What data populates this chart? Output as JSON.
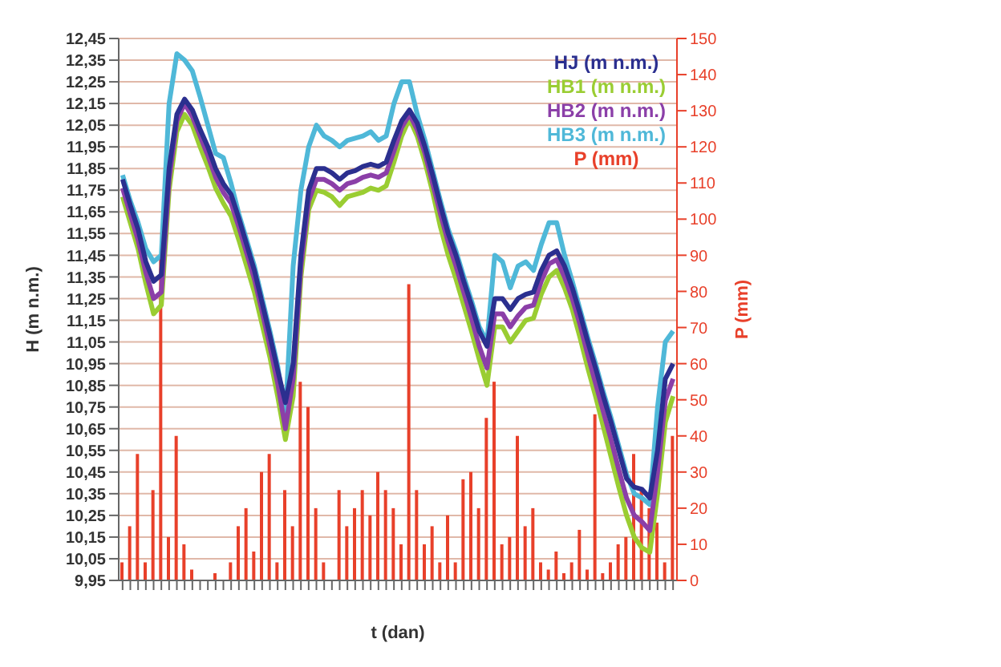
{
  "chart_data": {
    "type": "line",
    "xlabel": "t (dan)",
    "ylabel": "H (m n.m.)",
    "y2label": "P (mm)",
    "categories": [
      null,
      null,
      null,
      null,
      null,
      null,
      null,
      null,
      null,
      null,
      null,
      null,
      null,
      null,
      null,
      null,
      null,
      null,
      null,
      null,
      null,
      null,
      null,
      null,
      null,
      null,
      null,
      null,
      null,
      null,
      null,
      null,
      null,
      null,
      null,
      null,
      null,
      null,
      null,
      null,
      null,
      null,
      null,
      null,
      null,
      null,
      null,
      null,
      null,
      null,
      null,
      null,
      null,
      null,
      null,
      null,
      null,
      null,
      null,
      null,
      null,
      null,
      null,
      null,
      null,
      null,
      null,
      null,
      null,
      null,
      null,
      null
    ],
    "ylim": [
      9.95,
      12.45
    ],
    "yticks": [
      {
        "value": 9.95,
        "label": "9,95"
      },
      {
        "value": 10.05,
        "label": "10,05"
      },
      {
        "value": 10.15,
        "label": "10,15"
      },
      {
        "value": 10.25,
        "label": "10,25"
      },
      {
        "value": 10.35,
        "label": "10,35"
      },
      {
        "value": 10.45,
        "label": "10,45"
      },
      {
        "value": 10.55,
        "label": "10,55"
      },
      {
        "value": 10.65,
        "label": "10,65"
      },
      {
        "value": 10.75,
        "label": "10,75"
      },
      {
        "value": 10.85,
        "label": "10,85"
      },
      {
        "value": 10.95,
        "label": "10,95"
      },
      {
        "value": 11.05,
        "label": "11,05"
      },
      {
        "value": 11.15,
        "label": "11,15"
      },
      {
        "value": 11.25,
        "label": "11,25"
      },
      {
        "value": 11.35,
        "label": "11,35"
      },
      {
        "value": 11.45,
        "label": "11,45"
      },
      {
        "value": 11.55,
        "label": "11,55"
      },
      {
        "value": 11.65,
        "label": "11,65"
      },
      {
        "value": 11.75,
        "label": "11,75"
      },
      {
        "value": 11.85,
        "label": "11,85"
      },
      {
        "value": 11.95,
        "label": "11,95"
      },
      {
        "value": 12.05,
        "label": "12,05"
      },
      {
        "value": 12.15,
        "label": "12,15"
      },
      {
        "value": 12.25,
        "label": "12,25"
      },
      {
        "value": 12.35,
        "label": "12,35"
      },
      {
        "value": 12.45,
        "label": "12,45"
      }
    ],
    "y2lim": [
      0,
      150
    ],
    "y2ticks": [
      0,
      10,
      20,
      30,
      40,
      50,
      60,
      70,
      80,
      90,
      100,
      110,
      120,
      130,
      140,
      150
    ],
    "grid": "y",
    "legend": "top right",
    "series": [
      {
        "name": "P (mm)",
        "type": "bar",
        "axis": "y2",
        "color": "#e8402a",
        "values": [
          5,
          15,
          35,
          5,
          25,
          90,
          12,
          40,
          10,
          3,
          0,
          0,
          2,
          0,
          5,
          15,
          20,
          8,
          30,
          35,
          5,
          25,
          15,
          55,
          48,
          20,
          5,
          0,
          25,
          15,
          20,
          25,
          18,
          30,
          25,
          20,
          10,
          82,
          25,
          10,
          15,
          5,
          18,
          5,
          28,
          30,
          20,
          45,
          55,
          10,
          12,
          40,
          15,
          20,
          5,
          3,
          8,
          2,
          5,
          14,
          3,
          46,
          2,
          5,
          10,
          12,
          35,
          25,
          20,
          16,
          5,
          40
        ]
      },
      {
        "name": "HB1 (m n.m.)",
        "color": "#9acd32",
        "values": [
          11.72,
          11.6,
          11.48,
          11.32,
          11.18,
          11.22,
          11.75,
          12.02,
          12.1,
          12.05,
          11.95,
          11.86,
          11.76,
          11.69,
          11.63,
          11.52,
          11.4,
          11.28,
          11.13,
          10.98,
          10.8,
          10.6,
          10.8,
          11.35,
          11.66,
          11.75,
          11.74,
          11.72,
          11.68,
          11.72,
          11.73,
          11.74,
          11.76,
          11.75,
          11.77,
          11.88,
          12.0,
          12.08,
          12.0,
          11.88,
          11.74,
          11.58,
          11.45,
          11.34,
          11.22,
          11.1,
          10.97,
          10.85,
          11.12,
          11.12,
          11.05,
          11.1,
          11.15,
          11.16,
          11.27,
          11.35,
          11.38,
          11.3,
          11.2,
          11.07,
          10.93,
          10.8,
          10.66,
          10.52,
          10.38,
          10.25,
          10.15,
          10.1,
          10.08,
          10.35,
          10.68,
          10.8
        ]
      },
      {
        "name": "HB3 (m n.m.)",
        "color": "#4fb8d8",
        "values": [
          11.82,
          11.7,
          11.6,
          11.48,
          11.42,
          11.45,
          12.15,
          12.38,
          12.35,
          12.3,
          12.18,
          12.05,
          11.92,
          11.9,
          11.78,
          11.64,
          11.52,
          11.4,
          11.25,
          11.1,
          10.94,
          10.7,
          11.4,
          11.75,
          11.95,
          12.05,
          12.0,
          11.98,
          11.95,
          11.98,
          11.99,
          12.0,
          12.02,
          11.98,
          12.0,
          12.15,
          12.25,
          12.25,
          12.1,
          11.98,
          11.84,
          11.7,
          11.57,
          11.47,
          11.35,
          11.24,
          11.12,
          11.05,
          11.45,
          11.42,
          11.3,
          11.4,
          11.42,
          11.38,
          11.5,
          11.6,
          11.6,
          11.45,
          11.33,
          11.2,
          11.07,
          10.95,
          10.82,
          10.7,
          10.57,
          10.44,
          10.35,
          10.33,
          10.3,
          10.75,
          11.05,
          11.1
        ]
      },
      {
        "name": "HB2 (m n.m.)",
        "color": "#8b3fa8",
        "values": [
          11.76,
          11.64,
          11.52,
          11.37,
          11.25,
          11.28,
          11.8,
          12.07,
          12.15,
          12.09,
          12.0,
          11.91,
          11.81,
          11.74,
          11.69,
          11.58,
          11.46,
          11.34,
          11.19,
          11.03,
          10.86,
          10.65,
          10.88,
          11.4,
          11.7,
          11.8,
          11.8,
          11.78,
          11.75,
          11.78,
          11.79,
          11.81,
          11.82,
          11.81,
          11.83,
          11.93,
          12.04,
          12.1,
          12.03,
          11.92,
          11.78,
          11.64,
          11.51,
          11.4,
          11.28,
          11.16,
          11.03,
          10.93,
          11.18,
          11.18,
          11.12,
          11.17,
          11.21,
          11.22,
          11.33,
          11.41,
          11.43,
          11.35,
          11.25,
          11.13,
          10.99,
          10.86,
          10.73,
          10.6,
          10.46,
          10.33,
          10.25,
          10.22,
          10.18,
          10.45,
          10.78,
          10.88
        ]
      },
      {
        "name": "HJ (m n.m.)",
        "color": "#2b2f8f",
        "values": [
          11.8,
          11.68,
          11.57,
          11.42,
          11.33,
          11.36,
          11.85,
          12.1,
          12.17,
          12.12,
          12.03,
          11.95,
          11.85,
          11.78,
          11.73,
          11.62,
          11.5,
          11.38,
          11.23,
          11.08,
          10.92,
          10.77,
          10.95,
          11.45,
          11.75,
          11.85,
          11.85,
          11.83,
          11.8,
          11.83,
          11.84,
          11.86,
          11.87,
          11.86,
          11.88,
          11.98,
          12.07,
          12.12,
          12.06,
          11.95,
          11.82,
          11.68,
          11.55,
          11.45,
          11.33,
          11.22,
          11.1,
          11.03,
          11.25,
          11.25,
          11.2,
          11.25,
          11.27,
          11.28,
          11.38,
          11.45,
          11.47,
          11.4,
          11.3,
          11.18,
          11.05,
          10.93,
          10.8,
          10.68,
          10.55,
          10.42,
          10.38,
          10.37,
          10.33,
          10.55,
          10.88,
          10.95
        ]
      }
    ]
  }
}
